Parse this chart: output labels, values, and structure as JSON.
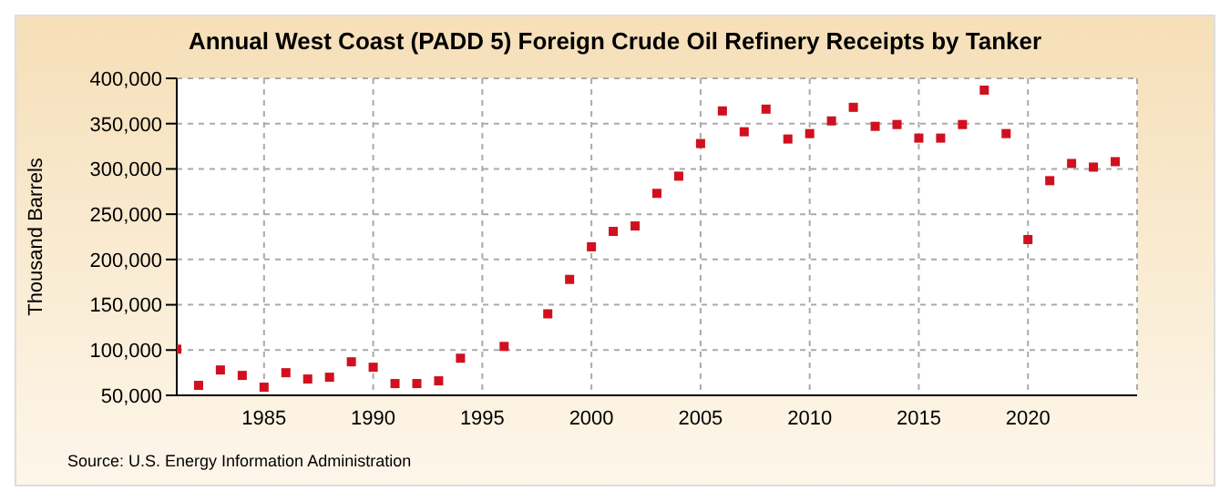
{
  "chart_data": {
    "type": "scatter",
    "title": "Annual West Coast (PADD 5) Foreign Crude Oil Refinery Receipts by Tanker",
    "ylabel": "Thousand Barrels",
    "annotations": [
      "Source: U.S. Energy Information Administration"
    ],
    "x": [
      1981,
      1982,
      1983,
      1984,
      1985,
      1986,
      1987,
      1988,
      1989,
      1990,
      1991,
      1992,
      1993,
      1994,
      1996,
      1998,
      1999,
      2000,
      2001,
      2002,
      2003,
      2004,
      2005,
      2006,
      2007,
      2008,
      2009,
      2010,
      2011,
      2012,
      2013,
      2014,
      2015,
      2016,
      2017,
      2018,
      2019,
      2020,
      2021,
      2022,
      2023,
      2024
    ],
    "series": [
      {
        "color": "#d0101e",
        "values": [
          101000,
          61000,
          78000,
          72000,
          59000,
          75000,
          68000,
          70000,
          87000,
          81000,
          63000,
          63000,
          66000,
          91000,
          104000,
          140000,
          178000,
          214000,
          231000,
          237000,
          273000,
          292000,
          328000,
          364000,
          341000,
          366000,
          333000,
          339000,
          353000,
          368000,
          347000,
          349000,
          334000,
          334000,
          349000,
          387000,
          339000,
          222000,
          287000,
          306000,
          302000,
          308000
        ]
      }
    ],
    "xlim": [
      1981,
      2025
    ],
    "xticks": [
      1985,
      1990,
      1995,
      2000,
      2005,
      2010,
      2015,
      2020
    ],
    "ylim": [
      50000,
      400000
    ],
    "yticks": [
      {
        "value": 50000,
        "label": "50,000"
      },
      {
        "value": 100000,
        "label": "100,000"
      },
      {
        "value": 150000,
        "label": "150,000"
      },
      {
        "value": 200000,
        "label": "200,000"
      },
      {
        "value": 250000,
        "label": "250,000"
      },
      {
        "value": 300000,
        "label": "300,000"
      },
      {
        "value": 350000,
        "label": "350,000"
      },
      {
        "value": 400000,
        "label": "400,000"
      }
    ],
    "grid": true,
    "marker": "square",
    "legend": false
  }
}
